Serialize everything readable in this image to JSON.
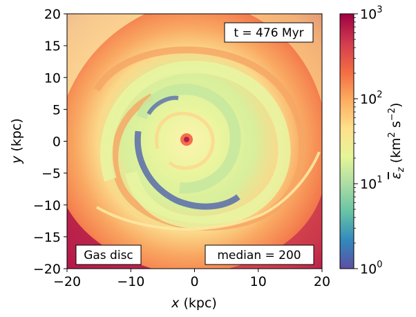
{
  "chart_data": {
    "type": "heatmap",
    "quantity": "specific vertical kinetic energy of gas",
    "xlabel_var": "x",
    "xlabel_unit": "(kpc)",
    "ylabel_var": "y",
    "ylabel_unit": "(kpc)",
    "xlim": [
      -20,
      20
    ],
    "ylim": [
      -20,
      20
    ],
    "x_ticks": [
      -20,
      -10,
      0,
      10,
      20
    ],
    "y_ticks": [
      20,
      15,
      10,
      5,
      0,
      -5,
      -10,
      -15,
      -20
    ],
    "x_tick_labels": [
      "−20",
      "−10",
      "0",
      "10",
      "20"
    ],
    "y_tick_labels": [
      "20",
      "15",
      "10",
      "5",
      "0",
      "−5",
      "−10",
      "−15",
      "−20"
    ],
    "colorbar": {
      "scale": "log",
      "range": [
        1,
        1000
      ],
      "colormap": "Spectral_r",
      "ticks": [
        {
          "value": 1000,
          "base": "10",
          "exp": "3"
        },
        {
          "value": 100,
          "base": "10",
          "exp": "2"
        },
        {
          "value": 10,
          "base": "10",
          "exp": "1"
        },
        {
          "value": 1,
          "base": "10",
          "exp": "0"
        }
      ],
      "label_symbol": "ε",
      "label_sub": "z",
      "label_unit_open": " (km",
      "label_unit_sup1": "2",
      "label_unit_mid": " s",
      "label_unit_sup2": "−2",
      "label_unit_close": ")"
    },
    "annotations": {
      "time": "t = 476 Myr",
      "component": "Gas disc",
      "median": "median =  200"
    },
    "colors": {
      "stops": [
        "#5e4fa2",
        "#3288bd",
        "#66c2a5",
        "#abdda4",
        "#e6f598",
        "#fee08b",
        "#fdae61",
        "#f46d43",
        "#d53e4f",
        "#9e0142"
      ]
    }
  }
}
